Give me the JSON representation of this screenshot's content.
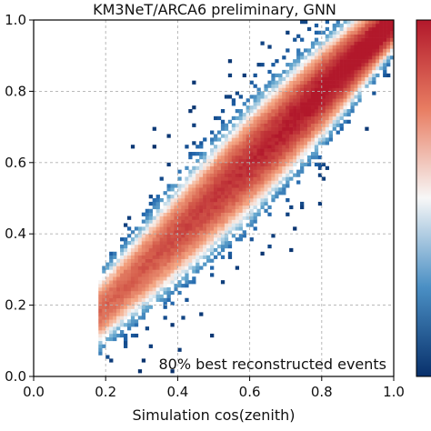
{
  "chart_data": {
    "type": "heatmap",
    "title": "KM3NeT/ARCA6 preliminary, GNN",
    "xlabel": "Simulation cos(zenith)",
    "ylabel": "",
    "xlim": [
      0.0,
      1.0
    ],
    "ylim": [
      0.0,
      1.0
    ],
    "x_ticks": [
      "0.0",
      "0.2",
      "0.4",
      "0.6",
      "0.8",
      "1.0"
    ],
    "y_ticks": [
      "0.0",
      "0.2",
      "0.4",
      "0.6",
      "0.8",
      "1.0"
    ],
    "grid": true,
    "annotation": "80% best reconstructed events",
    "colormap": "RdBu_r",
    "colorbar": "right, ticks not visible",
    "density_model": {
      "ridge": "y = x",
      "spread_sigma_at_x": [
        [
          0.2,
          0.05
        ],
        [
          0.4,
          0.065
        ],
        [
          0.6,
          0.07
        ],
        [
          0.8,
          0.06
        ],
        [
          1.0,
          0.035
        ]
      ],
      "occupied_x_range": [
        0.18,
        1.0
      ],
      "peak_x": 1.0
    }
  },
  "colors": {
    "low": "#08306b",
    "mid": "#f7f7f7",
    "high": "#b2182b",
    "grid": "#b0b0b0"
  }
}
